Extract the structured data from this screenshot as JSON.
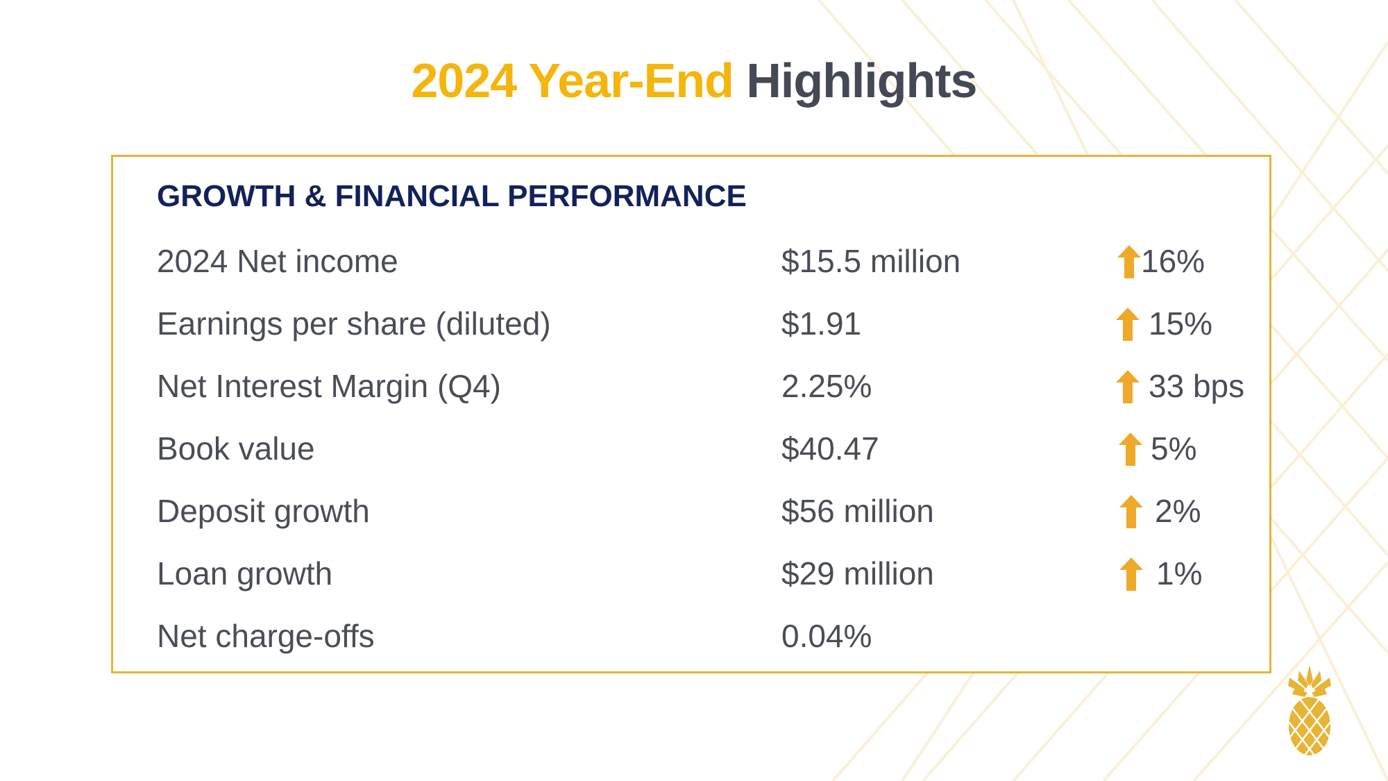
{
  "title": {
    "part1": "2024 Year-End",
    "part2": "Highlights"
  },
  "section_title": "GROWTH & FINANCIAL PERFORMANCE",
  "rows": [
    {
      "label": "2024 Net income",
      "value": "$15.5 million",
      "change": "16%",
      "trend": "up"
    },
    {
      "label": "Earnings per share (diluted)",
      "value": "$1.91",
      "change": "15%",
      "trend": "up"
    },
    {
      "label": "Net Interest Margin (Q4)",
      "value": "2.25%",
      "change": "33 bps",
      "trend": "up"
    },
    {
      "label": "Book value",
      "value": "$40.47",
      "change": "5%",
      "trend": "up"
    },
    {
      "label": "Deposit growth",
      "value": "$56 million",
      "change": "2%",
      "trend": "up"
    },
    {
      "label": "Loan growth",
      "value": "$29 million",
      "change": "1%",
      "trend": "up"
    },
    {
      "label": "Net charge-offs",
      "value": "0.04%",
      "change": "",
      "trend": "none"
    }
  ],
  "colors": {
    "accent_gold": "#F4B50C",
    "arrow_gold": "#EFA92A",
    "border_gold": "#E8B436",
    "title_gray": "#454955",
    "navy": "#13215B",
    "text_gray": "#4A4D57"
  },
  "icons": {
    "trend_up": "arrow-up-icon",
    "logo": "pineapple-logo-icon"
  }
}
